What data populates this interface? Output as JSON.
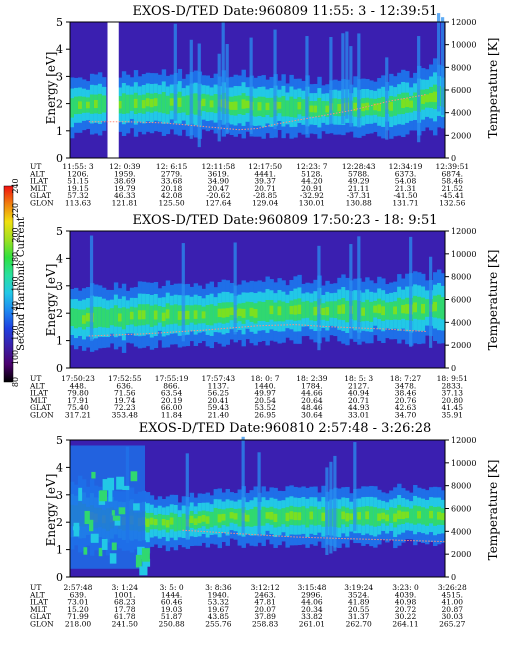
{
  "colors": {
    "background_plasma": "#3a1fb0",
    "colorbar": [
      "#000000",
      "#4b006e",
      "#3b1fa8",
      "#1f3fe0",
      "#1e88f0",
      "#22c8e6",
      "#28e0a0",
      "#30e040",
      "#a0e020",
      "#f0e010",
      "#f08010",
      "#f01010"
    ]
  },
  "colorbar": {
    "label": "Second Harmonic Current",
    "ticks": [
      80,
      100,
      120,
      140,
      160,
      180,
      200,
      220,
      240
    ],
    "range": [
      80,
      240
    ]
  },
  "chart_data": [
    {
      "type": "heatmap",
      "title": "EXOS-D/TED   Date:960809  11:55: 3 - 12:39:51",
      "ylabel": "Energy [eV]",
      "ylim": [
        0,
        5
      ],
      "yticks": [
        0,
        1,
        2,
        3,
        4,
        5
      ],
      "y2label": "Temperature [K]",
      "y2lim": [
        0,
        12000
      ],
      "y2ticks": [
        0,
        2000,
        4000,
        6000,
        8000,
        10000,
        12000
      ],
      "band": {
        "x": [
          0,
          0.2,
          0.35,
          0.5,
          0.65,
          0.8,
          0.9,
          1.0
        ],
        "center": [
          1.9,
          2.0,
          2.0,
          1.9,
          1.85,
          1.85,
          2.0,
          2.3
        ],
        "width": [
          0.45,
          0.5,
          0.5,
          0.5,
          0.45,
          0.45,
          0.5,
          0.6
        ]
      },
      "temperature_trace": {
        "x": [
          0.05,
          0.15,
          0.25,
          0.35,
          0.45,
          0.5,
          0.55,
          0.65,
          0.75,
          0.85,
          0.95
        ],
        "y": [
          3200,
          3200,
          3100,
          2800,
          2500,
          2600,
          3000,
          3600,
          4200,
          5000,
          5600
        ]
      },
      "gap": [
        0.1,
        0.13
      ],
      "table": {
        "rows": [
          {
            "label": "UT",
            "values": [
              "11:55: 3",
              "12: 0:39",
              "12: 6:15",
              "12:11:58",
              "12:17:50",
              "12:23: 7",
              "12:28:43",
              "12:34:19",
              "12:39:51"
            ]
          },
          {
            "label": "ALT",
            "values": [
              "1206.",
              "1959.",
              "2779.",
              "3619.",
              "4441.",
              "5128.",
              "5788.",
              "6373.",
              "6874."
            ]
          },
          {
            "label": "ILAT",
            "values": [
              "51.15",
              "38.69",
              "33.68",
              "34.90",
              "39.37",
              "44.20",
              "49.29",
              "54.08",
              "58.46"
            ]
          },
          {
            "label": "MLT",
            "values": [
              "19.15",
              "19.79",
              "20.18",
              "20.47",
              "20.71",
              "20.91",
              "21.11",
              "21.31",
              "21.52"
            ]
          },
          {
            "label": "GLAT",
            "values": [
              "57.32",
              "46.33",
              "42.08",
              "-20.62",
              "-28.85",
              "-32.92",
              "-37.31",
              "-41.50",
              "-45.41"
            ]
          },
          {
            "label": "GLON",
            "values": [
              "113.63",
              "121.81",
              "125.50",
              "127.64",
              "129.04",
              "130.01",
              "130.88",
              "131.71",
              "132.56"
            ]
          }
        ]
      }
    },
    {
      "type": "heatmap",
      "title": "EXOS-D/TED   Date:960809  17:50:23 - 18: 9:51",
      "ylabel": "Energy [eV]",
      "ylim": [
        0,
        5
      ],
      "yticks": [
        0,
        1,
        2,
        3,
        4,
        5
      ],
      "y2label": "Temperature [K]",
      "y2lim": [
        0,
        12000
      ],
      "y2ticks": [
        0,
        2000,
        4000,
        6000,
        8000,
        10000,
        12000
      ],
      "band": {
        "x": [
          0,
          0.2,
          0.4,
          0.6,
          0.8,
          1.0
        ],
        "center": [
          1.8,
          1.9,
          2.0,
          2.1,
          2.1,
          2.2
        ],
        "width": [
          0.5,
          0.5,
          0.5,
          0.5,
          0.5,
          0.55
        ]
      },
      "temperature_trace": {
        "x": [
          0.05,
          0.2,
          0.35,
          0.5,
          0.6,
          0.7,
          0.85,
          0.95
        ],
        "y": [
          2800,
          3000,
          3300,
          3700,
          3800,
          3600,
          3400,
          3200
        ]
      },
      "gap": [],
      "table": {
        "rows": [
          {
            "label": "UT",
            "values": [
              "17:50:23",
              "17:52:55",
              "17:55:19",
              "17:57:43",
              "18: 0: 7",
              "18: 2:39",
              "18: 5: 3",
              "18: 7:27",
              "18: 9:51"
            ]
          },
          {
            "label": "ALT",
            "values": [
              "448.",
              "636.",
              "866.",
              "1137.",
              "1440.",
              "1784.",
              "2127.",
              "3478.",
              "2833."
            ]
          },
          {
            "label": "ILAT",
            "values": [
              "79.80",
              "71.56",
              "63.54",
              "56.25",
              "49.97",
              "44.66",
              "40.94",
              "38.46",
              "37.13"
            ]
          },
          {
            "label": "MLT",
            "values": [
              "17.91",
              "19.74",
              "20.19",
              "20.41",
              "20.54",
              "20.64",
              "20.71",
              "20.76",
              "20.80"
            ]
          },
          {
            "label": "GLAT",
            "values": [
              "75.40",
              "72.23",
              "66.00",
              "59.43",
              "53.52",
              "48.46",
              "44.93",
              "42.63",
              "41.45"
            ]
          },
          {
            "label": "GLON",
            "values": [
              "317.21",
              "353.48",
              "11.84",
              "21.40",
              "26.95",
              "30.64",
              "33.01",
              "34.70",
              "35.91"
            ]
          }
        ]
      }
    },
    {
      "type": "heatmap",
      "title": "EXOS-D/TED   Date:960810  2:57:48 - 3:26:28",
      "ylabel": "Energy [eV]",
      "ylim": [
        0,
        5
      ],
      "yticks": [
        0,
        1,
        2,
        3,
        4,
        5
      ],
      "y2label": "Temperature [K]",
      "y2lim": [
        0,
        12000
      ],
      "y2ticks": [
        0,
        2000,
        4000,
        6000,
        8000,
        10000,
        12000
      ],
      "band": {
        "x": [
          0,
          0.2,
          0.3,
          0.4,
          0.6,
          0.8,
          1.0
        ],
        "center": [
          2.3,
          2.0,
          2.0,
          2.2,
          2.2,
          2.2,
          2.25
        ],
        "width": [
          0.6,
          0.45,
          0.4,
          0.45,
          0.45,
          0.45,
          0.45
        ]
      },
      "temperature_trace": {
        "x": [
          0.3,
          0.4,
          0.5,
          0.6,
          0.7,
          0.8,
          0.9,
          1.0
        ],
        "y": [
          4100,
          3900,
          3700,
          3500,
          3400,
          3300,
          3200,
          3100
        ]
      },
      "gap": [],
      "table": {
        "rows": [
          {
            "label": "UT",
            "values": [
              "2:57:48",
              "3: 1:24",
              "3: 5: 0",
              "3: 8:36",
              "3:12:12",
              "3:15:48",
              "3:19:24",
              "3:23: 0",
              "3:26:28"
            ]
          },
          {
            "label": "ALT",
            "values": [
              "639.",
              "1001.",
              "1444.",
              "1940.",
              "2463.",
              "2996.",
              "3524.",
              "4039.",
              "4515."
            ]
          },
          {
            "label": "ILAT",
            "values": [
              "73.01",
              "68.23",
              "60.46",
              "53.32",
              "47.81",
              "44.06",
              "41.89",
              "40.98",
              "41.00"
            ]
          },
          {
            "label": "MLT",
            "values": [
              "15.20",
              "17.78",
              "19.03",
              "19.67",
              "20.07",
              "20.34",
              "20.55",
              "20.72",
              "20.87"
            ]
          },
          {
            "label": "GLAT",
            "values": [
              "71.99",
              "61.78",
              "51.87",
              "43.85",
              "37.89",
              "33.82",
              "31.37",
              "30.22",
              "30.03"
            ]
          },
          {
            "label": "GLON",
            "values": [
              "218.00",
              "241.50",
              "250.88",
              "255.76",
              "258.83",
              "261.01",
              "262.70",
              "264.11",
              "265.27"
            ]
          }
        ]
      }
    }
  ]
}
